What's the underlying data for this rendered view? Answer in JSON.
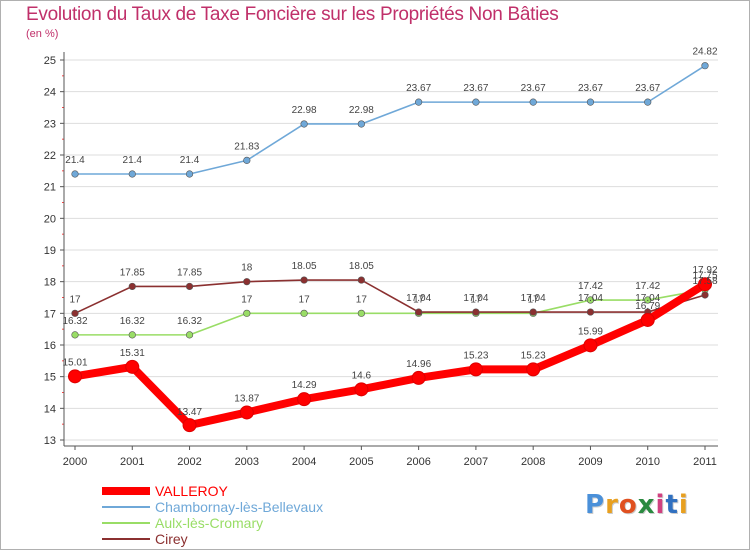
{
  "chart_data": {
    "type": "line",
    "title": "Evolution du Taux de Taxe Foncière sur les Propriétés Non Bâties",
    "unit_label": "(en %)",
    "xlabel": "",
    "ylabel": "",
    "x": [
      "2000",
      "2001",
      "2002",
      "2003",
      "2004",
      "2005",
      "2006",
      "2007",
      "2008",
      "2009",
      "2010",
      "2011"
    ],
    "ylim": [
      13,
      25
    ],
    "yticks": [
      13,
      14,
      15,
      16,
      17,
      18,
      19,
      20,
      21,
      22,
      23,
      24,
      25
    ],
    "grid": "horizontal",
    "legend_position": "bottom-left",
    "series": [
      {
        "name": "VALLEROY",
        "color": "#ff0000",
        "values": [
          15.01,
          15.31,
          13.47,
          13.87,
          14.29,
          14.6,
          14.96,
          15.23,
          15.23,
          15.99,
          16.79,
          17.92
        ],
        "labels": [
          "15.01",
          "15.31",
          "13.47",
          "13.87",
          "14.29",
          "14.6",
          "14.96",
          "15.23",
          "15.23",
          "15.99",
          "16.79",
          "17.92"
        ]
      },
      {
        "name": "Chambornay-lès-Bellevaux",
        "color": "#6fa8d8",
        "values": [
          21.4,
          21.4,
          21.4,
          21.83,
          22.98,
          22.98,
          23.67,
          23.67,
          23.67,
          23.67,
          23.67,
          24.82
        ],
        "labels": [
          "21.4",
          "21.4",
          "21.4",
          "21.83",
          "22.98",
          "22.98",
          "23.67",
          "23.67",
          "23.67",
          "23.67",
          "23.67",
          "24.82"
        ]
      },
      {
        "name": "Aulx-lès-Cromary",
        "color": "#99dd66",
        "values": [
          16.32,
          16.32,
          16.32,
          17,
          17,
          17,
          17,
          17,
          17,
          17.42,
          17.42,
          17.75
        ],
        "labels": [
          "16.32",
          "16.32",
          "16.32",
          "17",
          "17",
          "17",
          "17",
          "17",
          "17",
          "17.42",
          "17.42",
          "17.75"
        ]
      },
      {
        "name": "Cirey",
        "color": "#8b3030",
        "values": [
          17,
          17.85,
          17.85,
          18,
          18.05,
          18.05,
          17.04,
          17.04,
          17.04,
          17.04,
          17.04,
          17.58
        ],
        "labels": [
          "17",
          "17.85",
          "17.85",
          "18",
          "18.05",
          "18.05",
          "17.04",
          "17.04",
          "17.04",
          "17.04",
          "17.04",
          "17.58"
        ]
      }
    ]
  },
  "logo": {
    "text": "Proxiti",
    "letters": [
      "P",
      "r",
      "o",
      "x",
      "i",
      "t",
      "i"
    ],
    "colors": [
      "#4a90d9",
      "#e8a020",
      "#e05020",
      "#2a8a40",
      "#d04080",
      "#3070c0",
      "#e8a020"
    ]
  }
}
